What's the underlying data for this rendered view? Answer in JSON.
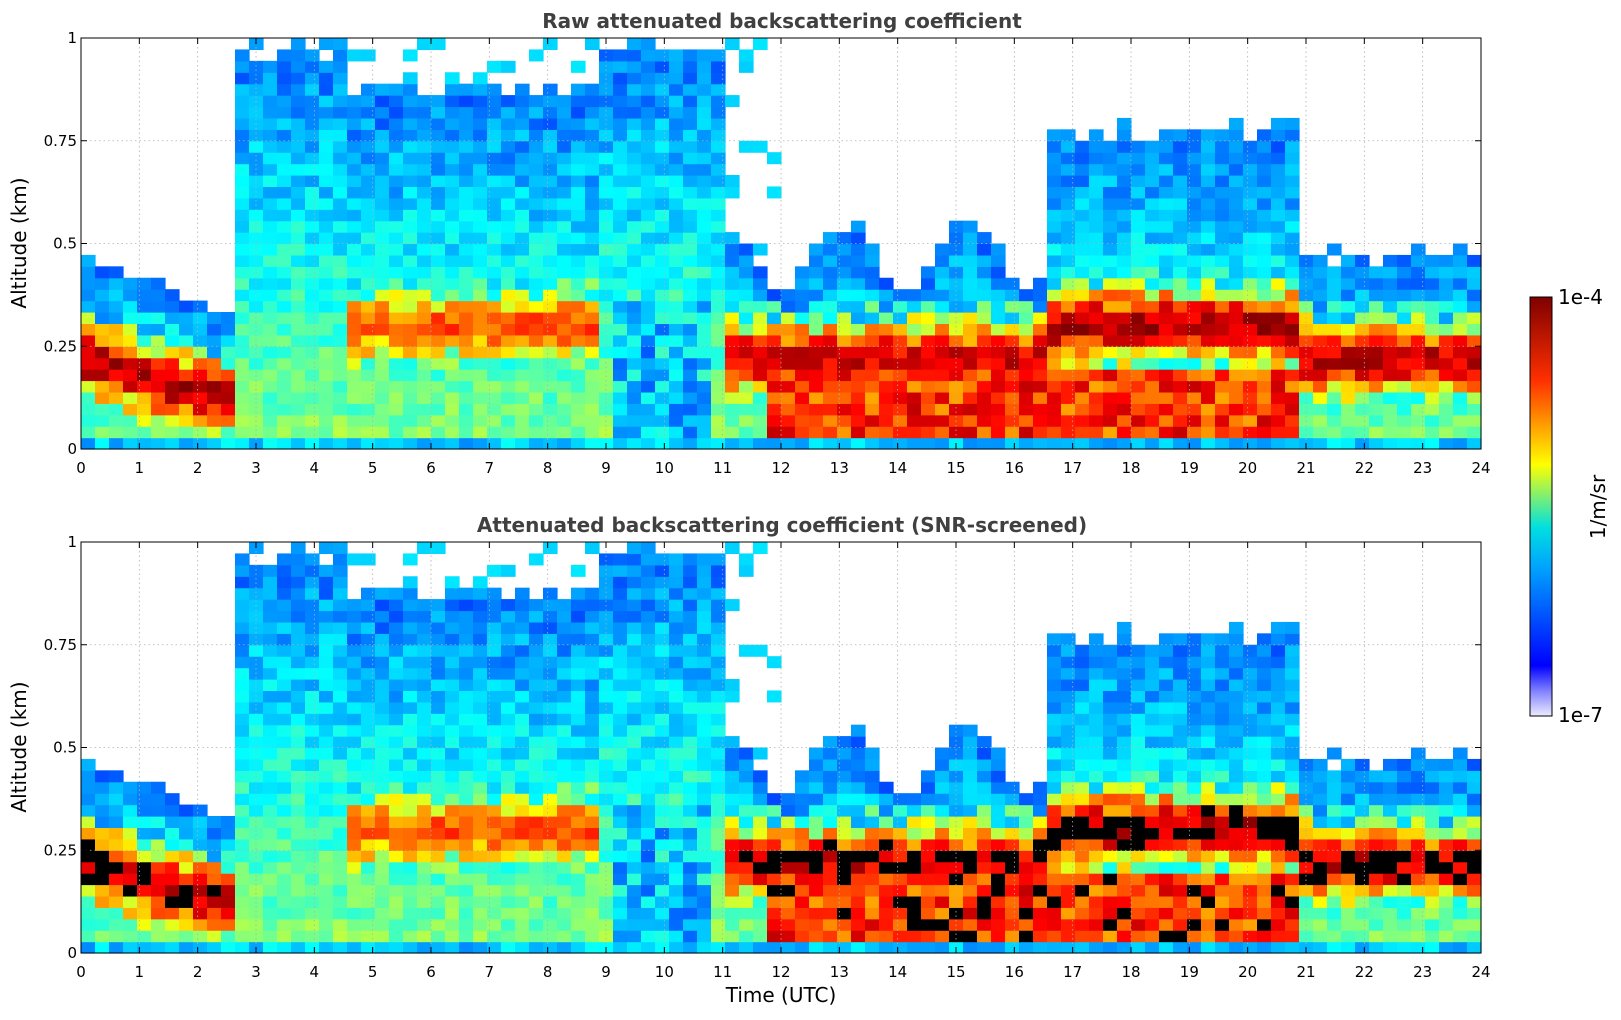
{
  "chart_data": [
    {
      "type": "heatmap",
      "title": "Raw attenuated backscattering coefficient",
      "xlabel": "",
      "ylabel": "Altitude (km)",
      "xlim": [
        0,
        24
      ],
      "ylim": [
        0,
        1
      ],
      "xticks": [
        "0",
        "1",
        "2",
        "3",
        "4",
        "5",
        "6",
        "7",
        "8",
        "9",
        "10",
        "11",
        "12",
        "13",
        "14",
        "15",
        "16",
        "17",
        "18",
        "19",
        "20",
        "21",
        "22",
        "23",
        "24"
      ],
      "yticks": [
        "0",
        "0.25",
        "0.5",
        "0.75",
        "1"
      ],
      "grid": true,
      "screened": false
    },
    {
      "type": "heatmap",
      "title": "Attenuated backscattering coefficient (SNR-screened)",
      "xlabel": "Time (UTC)",
      "ylabel": "Altitude (km)",
      "xlim": [
        0,
        24
      ],
      "ylim": [
        0,
        1
      ],
      "xticks": [
        "0",
        "1",
        "2",
        "3",
        "4",
        "5",
        "6",
        "7",
        "8",
        "9",
        "10",
        "11",
        "12",
        "13",
        "14",
        "15",
        "16",
        "17",
        "18",
        "19",
        "20",
        "21",
        "22",
        "23",
        "24"
      ],
      "yticks": [
        "0",
        "0.25",
        "0.5",
        "0.75",
        "1"
      ],
      "grid": true,
      "screened": true
    }
  ],
  "colorbar": {
    "label": "1/m/sr",
    "max_label": "1e-4",
    "min_label": "1e-7",
    "colormap": "jet",
    "colors": [
      "#ececff",
      "#0000ff",
      "#00c0ff",
      "#ffff00",
      "#ff4000",
      "#7f0000"
    ]
  }
}
